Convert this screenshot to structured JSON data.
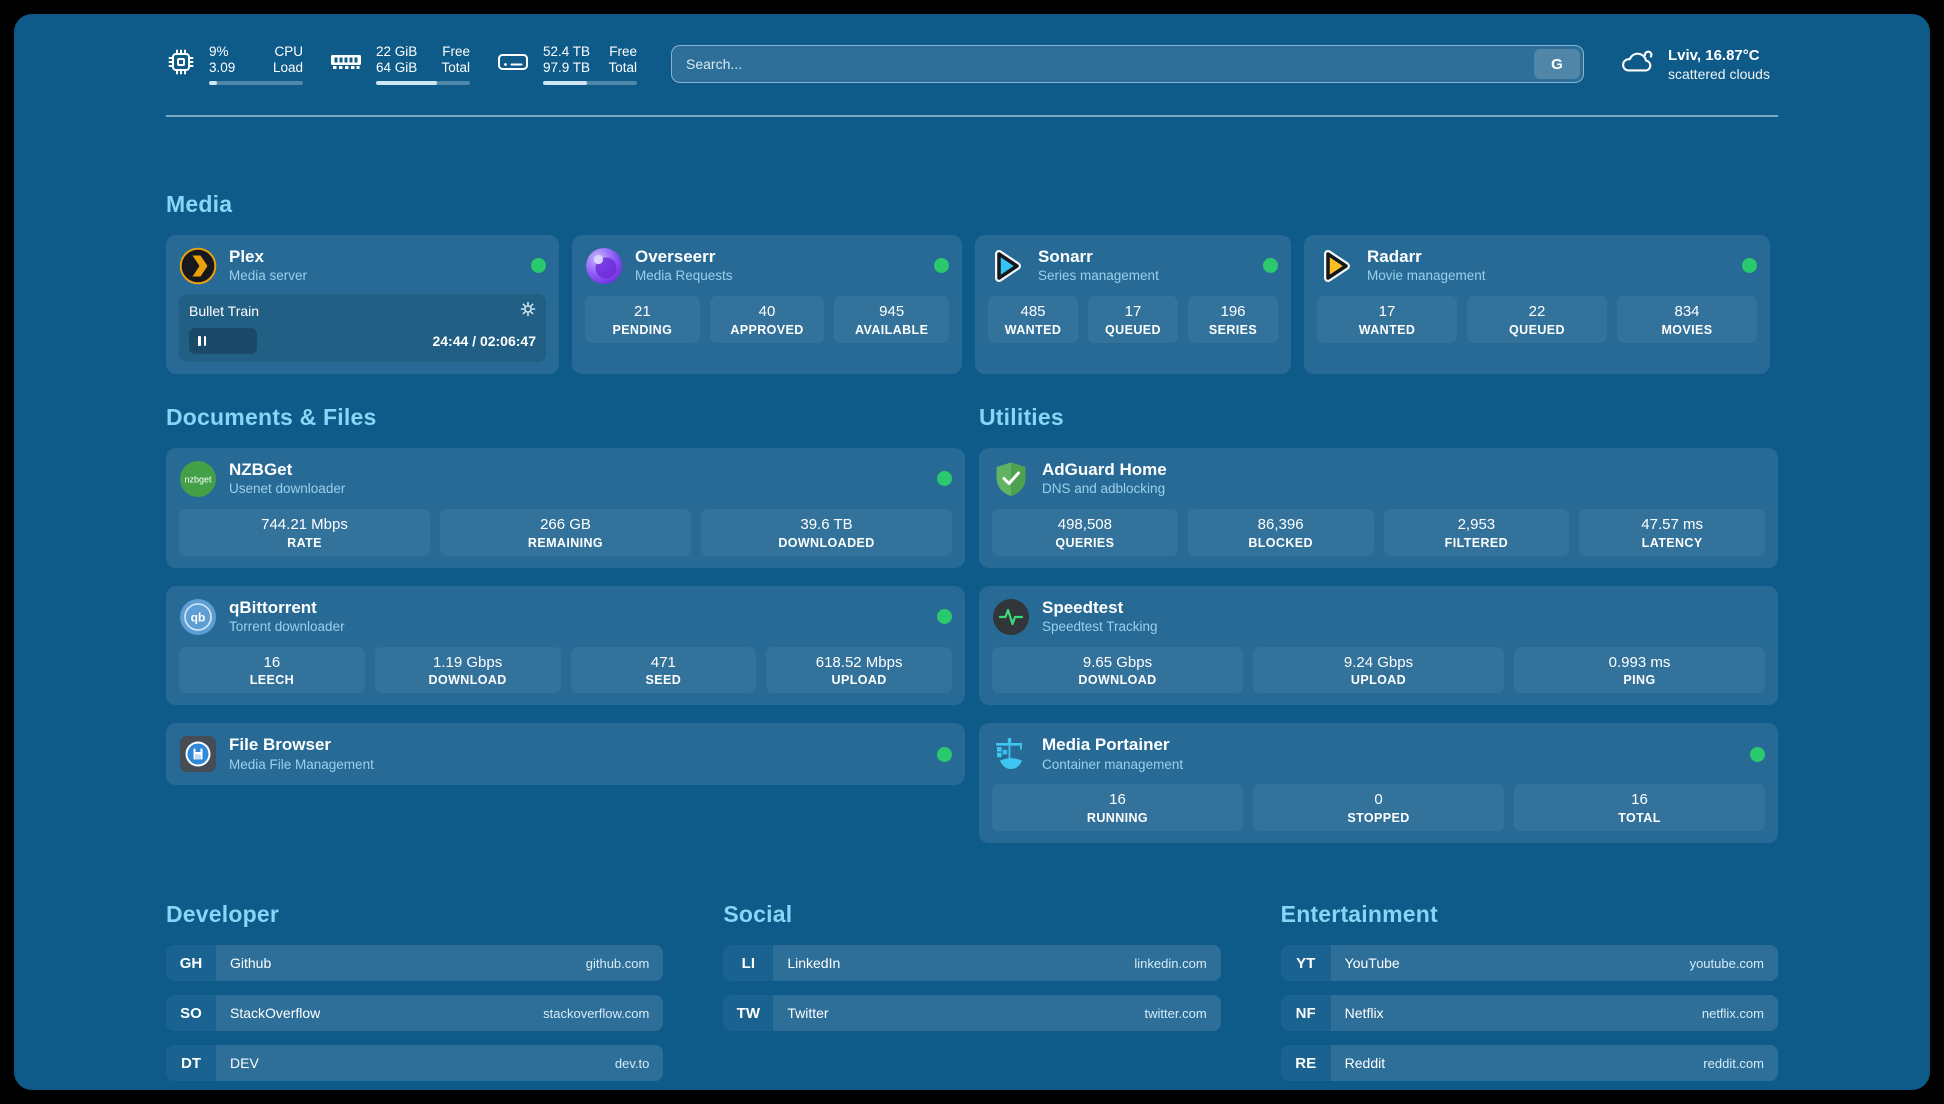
{
  "colors": {
    "background": "#0e5a89",
    "section_title": "#86d6f7",
    "status_online": "#2bc96e",
    "card": "rgba(255,255,255,0.10)"
  },
  "topbar": {
    "cpu": {
      "value_top": "9%",
      "value_bottom": "3.09",
      "label_top": "CPU",
      "label_bottom": "Load",
      "progress": 9
    },
    "ram": {
      "value_top": "22 GiB",
      "value_bottom": "64 GiB",
      "label_top": "Free",
      "label_bottom": "Total",
      "progress": 65
    },
    "disk": {
      "value_top": "52.4 TB",
      "value_bottom": "97.9 TB",
      "label_top": "Free",
      "label_bottom": "Total",
      "progress": 47
    },
    "search": {
      "placeholder": "Search...",
      "engine_label": "G"
    },
    "weather": {
      "location_temp": "Lviv, 16.87°C",
      "condition": "scattered clouds"
    }
  },
  "sections": {
    "media": {
      "title": "Media"
    },
    "documents": {
      "title": "Documents & Files"
    },
    "utilities": {
      "title": "Utilities"
    }
  },
  "apps": {
    "plex": {
      "name": "Plex",
      "subtitle": "Media server",
      "status": "online",
      "now_playing": {
        "title": "Bullet Train",
        "time": "24:44 / 02:06:47",
        "progress_pct": 19.5
      }
    },
    "overseerr": {
      "name": "Overseerr",
      "subtitle": "Media Requests",
      "status": "online",
      "stats": [
        {
          "value": "21",
          "label": "PENDING"
        },
        {
          "value": "40",
          "label": "APPROVED"
        },
        {
          "value": "945",
          "label": "AVAILABLE"
        }
      ]
    },
    "sonarr": {
      "name": "Sonarr",
      "subtitle": "Series management",
      "status": "online",
      "stats": [
        {
          "value": "485",
          "label": "WANTED"
        },
        {
          "value": "17",
          "label": "QUEUED"
        },
        {
          "value": "196",
          "label": "SERIES"
        }
      ]
    },
    "radarr": {
      "name": "Radarr",
      "subtitle": "Movie management",
      "status": "online",
      "stats": [
        {
          "value": "17",
          "label": "WANTED"
        },
        {
          "value": "22",
          "label": "QUEUED"
        },
        {
          "value": "834",
          "label": "MOVIES"
        }
      ]
    },
    "nzbget": {
      "name": "NZBGet",
      "subtitle": "Usenet downloader",
      "status": "online",
      "stats": [
        {
          "value": "744.21 Mbps",
          "label": "RATE"
        },
        {
          "value": "266 GB",
          "label": "REMAINING"
        },
        {
          "value": "39.6 TB",
          "label": "DOWNLOADED"
        }
      ]
    },
    "qbittorrent": {
      "name": "qBittorrent",
      "subtitle": "Torrent downloader",
      "status": "online",
      "stats": [
        {
          "value": "16",
          "label": "LEECH"
        },
        {
          "value": "1.19 Gbps",
          "label": "DOWNLOAD"
        },
        {
          "value": "471",
          "label": "SEED"
        },
        {
          "value": "618.52 Mbps",
          "label": "UPLOAD"
        }
      ]
    },
    "filebrowser": {
      "name": "File Browser",
      "subtitle": "Media File Management",
      "status": "online"
    },
    "adguard": {
      "name": "AdGuard Home",
      "subtitle": "DNS and adblocking",
      "stats": [
        {
          "value": "498,508",
          "label": "QUERIES"
        },
        {
          "value": "86,396",
          "label": "BLOCKED"
        },
        {
          "value": "2,953",
          "label": "FILTERED"
        },
        {
          "value": "47.57 ms",
          "label": "LATENCY"
        }
      ]
    },
    "speedtest": {
      "name": "Speedtest",
      "subtitle": "Speedtest Tracking",
      "stats": [
        {
          "value": "9.65 Gbps",
          "label": "DOWNLOAD"
        },
        {
          "value": "9.24 Gbps",
          "label": "UPLOAD"
        },
        {
          "value": "0.993 ms",
          "label": "PING"
        }
      ]
    },
    "portainer": {
      "name": "Media Portainer",
      "subtitle": "Container management",
      "status": "online",
      "stats": [
        {
          "value": "16",
          "label": "RUNNING"
        },
        {
          "value": "0",
          "label": "STOPPED"
        },
        {
          "value": "16",
          "label": "TOTAL"
        }
      ]
    }
  },
  "bookmarks": {
    "developer": {
      "title": "Developer",
      "items": [
        {
          "abbr": "GH",
          "name": "Github",
          "url": "github.com"
        },
        {
          "abbr": "SO",
          "name": "StackOverflow",
          "url": "stackoverflow.com"
        },
        {
          "abbr": "DT",
          "name": "DEV",
          "url": "dev.to"
        }
      ]
    },
    "social": {
      "title": "Social",
      "items": [
        {
          "abbr": "LI",
          "name": "LinkedIn",
          "url": "linkedin.com"
        },
        {
          "abbr": "TW",
          "name": "Twitter",
          "url": "twitter.com"
        }
      ]
    },
    "entertainment": {
      "title": "Entertainment",
      "items": [
        {
          "abbr": "YT",
          "name": "YouTube",
          "url": "youtube.com"
        },
        {
          "abbr": "NF",
          "name": "Netflix",
          "url": "netflix.com"
        },
        {
          "abbr": "RE",
          "name": "Reddit",
          "url": "reddit.com"
        }
      ]
    }
  }
}
